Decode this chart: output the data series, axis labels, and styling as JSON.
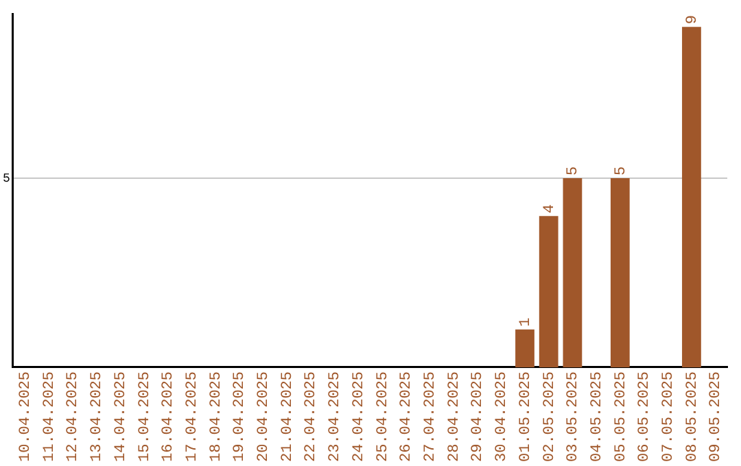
{
  "chart_data": {
    "type": "bar",
    "categories": [
      "10.04.2025",
      "11.04.2025",
      "12.04.2025",
      "13.04.2025",
      "14.04.2025",
      "15.04.2025",
      "16.04.2025",
      "17.04.2025",
      "18.04.2025",
      "19.04.2025",
      "20.04.2025",
      "21.04.2025",
      "22.04.2025",
      "23.04.2025",
      "24.04.2025",
      "25.04.2025",
      "26.04.2025",
      "27.04.2025",
      "28.04.2025",
      "29.04.2025",
      "30.04.2025",
      "01.05.2025",
      "02.05.2025",
      "03.05.2025",
      "04.05.2025",
      "05.05.2025",
      "06.05.2025",
      "07.05.2025",
      "08.05.2025",
      "09.05.2025"
    ],
    "values": [
      null,
      null,
      null,
      null,
      null,
      null,
      null,
      null,
      null,
      null,
      null,
      null,
      null,
      null,
      null,
      null,
      null,
      null,
      null,
      null,
      null,
      1,
      4,
      5,
      null,
      5,
      null,
      null,
      9,
      null
    ],
    "data_labels": true,
    "color": "#a0572a",
    "ylim": [
      0,
      9.35
    ],
    "yticks": [
      5
    ],
    "grid": "y"
  }
}
